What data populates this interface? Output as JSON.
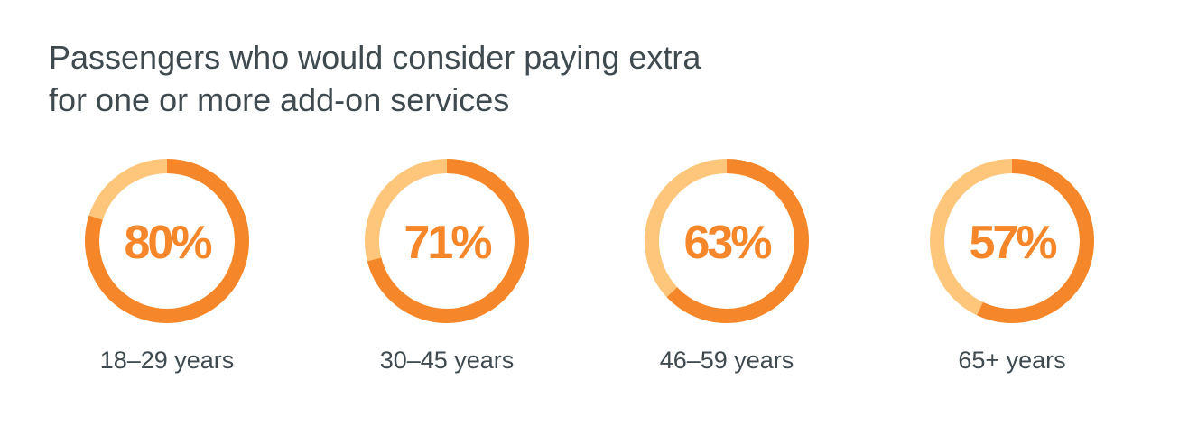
{
  "title_lines": [
    "Passengers who would consider paying extra",
    "for one or more add-on services"
  ],
  "colors": {
    "accent": "#f5872a",
    "track": "#fdc67a",
    "text": "#3f4a50",
    "background": "#ffffff"
  },
  "chart_data": {
    "type": "pie",
    "title": "Passengers who would consider paying extra for one or more add-on services",
    "categories": [
      "18–29 years",
      "30–45 years",
      "46–59 years",
      "65+ years"
    ],
    "values": [
      80,
      71,
      63,
      57
    ],
    "value_labels": [
      "80%",
      "71%",
      "63%",
      "57%"
    ],
    "unit": "%",
    "max": 100
  }
}
